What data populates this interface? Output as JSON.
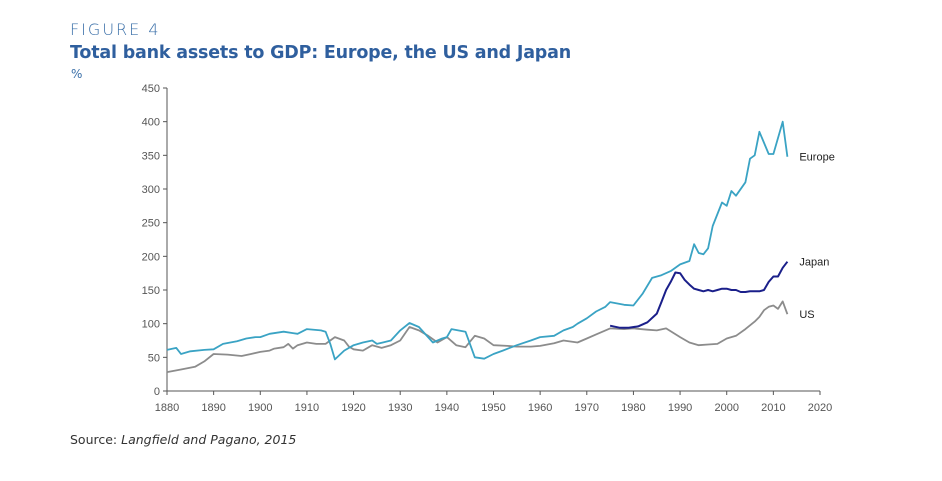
{
  "figure": {
    "label": "FIGURE 4",
    "title": "Total bank assets to GDP: Europe, the US and Japan",
    "unit": "%",
    "source_prefix": "Source: ",
    "source_text": "Langfield and Pagano, 2015"
  },
  "chart_data": {
    "type": "line",
    "title": "Total bank assets to GDP: Europe, the US and Japan",
    "xlabel": "",
    "ylabel": "%",
    "xlim": [
      1880,
      2020
    ],
    "ylim": [
      0,
      450
    ],
    "xticks": [
      1880,
      1890,
      1900,
      1910,
      1920,
      1930,
      1940,
      1950,
      1960,
      1970,
      1980,
      1990,
      2000,
      2010,
      2020
    ],
    "yticks": [
      0,
      50,
      100,
      150,
      200,
      250,
      300,
      350,
      400,
      450
    ],
    "grid": false,
    "legend": "inline labels at line ends (right)",
    "series": [
      {
        "name": "Europe",
        "color": "#3aa3c4",
        "x": [
          1880,
          1882,
          1883,
          1885,
          1888,
          1890,
          1892,
          1895,
          1897,
          1899,
          1900,
          1902,
          1905,
          1907,
          1908,
          1910,
          1913,
          1914,
          1915,
          1916,
          1918,
          1920,
          1922,
          1924,
          1925,
          1928,
          1930,
          1932,
          1934,
          1937,
          1939,
          1940,
          1941,
          1944,
          1946,
          1948,
          1950,
          1952,
          1955,
          1958,
          1960,
          1963,
          1965,
          1967,
          1968,
          1970,
          1972,
          1974,
          1975,
          1978,
          1980,
          1982,
          1984,
          1986,
          1988,
          1990,
          1992,
          1993,
          1994,
          1995,
          1996,
          1997,
          1999,
          2000,
          2001,
          2002,
          2004,
          2005,
          2006,
          2007,
          2009,
          2010,
          2012,
          2013
        ],
        "values": [
          61,
          64,
          55,
          59,
          61,
          62,
          70,
          74,
          78,
          80,
          80,
          85,
          88,
          86,
          85,
          92,
          90,
          88,
          70,
          47,
          60,
          68,
          72,
          75,
          70,
          75,
          90,
          101,
          95,
          72,
          78,
          80,
          92,
          88,
          50,
          48,
          55,
          60,
          68,
          75,
          80,
          82,
          90,
          95,
          100,
          108,
          118,
          125,
          132,
          128,
          127,
          145,
          168,
          172,
          178,
          188,
          193,
          218,
          205,
          203,
          212,
          245,
          280,
          275,
          297,
          290,
          310,
          345,
          350,
          385,
          352,
          352,
          400,
          348
        ]
      },
      {
        "name": "Japan",
        "color": "#1a1f8a",
        "x": [
          1975,
          1977,
          1979,
          1981,
          1983,
          1985,
          1986,
          1987,
          1988,
          1989,
          1990,
          1991,
          1992,
          1993,
          1994,
          1995,
          1996,
          1997,
          1998,
          1999,
          2000,
          2001,
          2002,
          2003,
          2004,
          2005,
          2006,
          2007,
          2008,
          2009,
          2010,
          2011,
          2012,
          2013
        ],
        "values": [
          97,
          94,
          94,
          96,
          102,
          115,
          132,
          150,
          162,
          176,
          175,
          165,
          158,
          152,
          150,
          148,
          150,
          148,
          150,
          152,
          152,
          150,
          150,
          147,
          147,
          148,
          148,
          148,
          150,
          162,
          170,
          170,
          183,
          192
        ]
      },
      {
        "name": "US",
        "color": "#8c8c8c",
        "x": [
          1880,
          1883,
          1886,
          1888,
          1890,
          1893,
          1896,
          1898,
          1900,
          1902,
          1903,
          1905,
          1906,
          1907,
          1908,
          1910,
          1912,
          1914,
          1916,
          1918,
          1919,
          1920,
          1922,
          1924,
          1926,
          1928,
          1930,
          1932,
          1934,
          1936,
          1938,
          1940,
          1942,
          1944,
          1946,
          1948,
          1950,
          1953,
          1955,
          1958,
          1960,
          1963,
          1965,
          1968,
          1970,
          1972,
          1975,
          1978,
          1980,
          1983,
          1985,
          1987,
          1990,
          1992,
          1994,
          1996,
          1998,
          2000,
          2002,
          2004,
          2006,
          2007,
          2008,
          2009,
          2010,
          2011,
          2012,
          2013
        ],
        "values": [
          28,
          32,
          36,
          44,
          55,
          54,
          52,
          55,
          58,
          60,
          63,
          65,
          70,
          63,
          68,
          72,
          70,
          70,
          80,
          75,
          66,
          62,
          60,
          68,
          64,
          68,
          75,
          95,
          90,
          82,
          72,
          80,
          68,
          65,
          82,
          78,
          68,
          67,
          66,
          66,
          67,
          71,
          75,
          72,
          78,
          84,
          93,
          92,
          93,
          91,
          90,
          93,
          80,
          72,
          68,
          69,
          70,
          78,
          82,
          92,
          103,
          110,
          120,
          125,
          127,
          122,
          133,
          114
        ]
      }
    ]
  }
}
